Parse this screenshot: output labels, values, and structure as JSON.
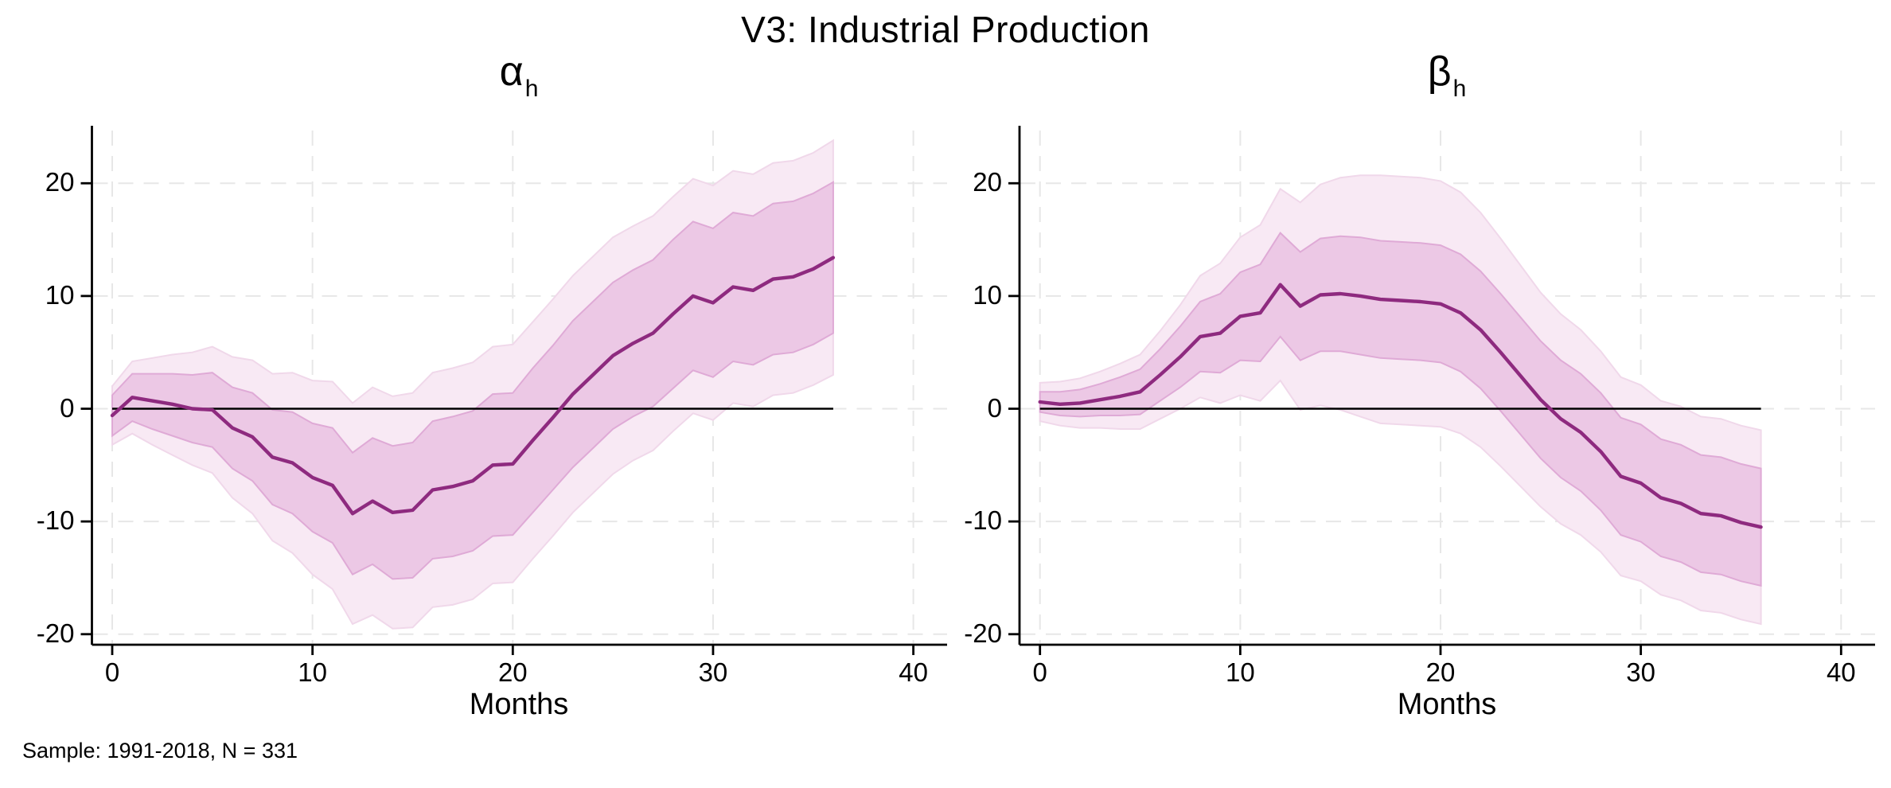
{
  "title": "V3: Industrial Production",
  "note": "Sample: 1991-2018, N = 331",
  "panels": [
    {
      "title_base": "α",
      "title_sub": "h",
      "xlabel": "Months"
    },
    {
      "title_base": "β",
      "title_sub": "h",
      "xlabel": "Months"
    }
  ],
  "colors": {
    "line": "#8e2a7f",
    "inner_fill": "#ecc8e5",
    "inner_edge": "#dfaad6",
    "outer_fill": "#f8e9f4",
    "outer_edge": "#f0d8ea",
    "zero_line": "#000000",
    "axis": "#000000",
    "grid": "#e7e7e7",
    "background": "#ffffff"
  },
  "chart_data": [
    {
      "type": "line",
      "title": "α_h",
      "xlabel": "Months",
      "ylabel": "",
      "x_ticks": [
        0,
        10,
        20,
        30,
        40
      ],
      "y_ticks": [
        20,
        10,
        0,
        -10,
        -20
      ],
      "xlim": [
        -1,
        41.6
      ],
      "ylim": [
        -21,
        25.1
      ],
      "grid": true,
      "legend": "none",
      "months": [
        0,
        1,
        2,
        3,
        4,
        5,
        6,
        7,
        8,
        9,
        10,
        11,
        12,
        13,
        14,
        15,
        16,
        17,
        18,
        19,
        20,
        21,
        22,
        23,
        24,
        25,
        26,
        27,
        28,
        29,
        30,
        31,
        32,
        33,
        34,
        35,
        36
      ],
      "line": [
        -0.6,
        1.0,
        0.7,
        0.4,
        0.0,
        -0.1,
        -1.7,
        -2.5,
        -4.3,
        -4.8,
        -6.1,
        -6.8,
        -9.3,
        -8.2,
        -9.2,
        -9.0,
        -7.2,
        -6.9,
        -6.4,
        -5.0,
        -4.9,
        -2.8,
        -0.8,
        1.3,
        3.0,
        4.7,
        5.8,
        6.7,
        8.4,
        10.0,
        9.4,
        10.8,
        10.5,
        11.5,
        11.7,
        12.4,
        13.4
      ],
      "inner_low": [
        -2.4,
        -1.1,
        -1.8,
        -2.4,
        -3.0,
        -3.4,
        -5.3,
        -6.4,
        -8.5,
        -9.3,
        -10.9,
        -11.9,
        -14.7,
        -13.8,
        -15.1,
        -15.0,
        -13.3,
        -13.1,
        -12.6,
        -11.3,
        -11.2,
        -9.2,
        -7.2,
        -5.2,
        -3.5,
        -1.8,
        -0.7,
        0.2,
        1.8,
        3.4,
        2.8,
        4.2,
        3.9,
        4.8,
        5.0,
        5.7,
        6.7
      ],
      "inner_high": [
        1.2,
        3.1,
        3.1,
        3.1,
        3.0,
        3.2,
        1.9,
        1.4,
        -0.1,
        -0.3,
        -1.3,
        -1.7,
        -3.9,
        -2.6,
        -3.3,
        -3.0,
        -1.1,
        -0.7,
        -0.2,
        1.3,
        1.4,
        3.6,
        5.6,
        7.8,
        9.5,
        11.2,
        12.3,
        13.2,
        15.0,
        16.6,
        16.0,
        17.4,
        17.1,
        18.2,
        18.4,
        19.1,
        20.1
      ],
      "outer_low": [
        -3.2,
        -2.2,
        -3.2,
        -4.1,
        -5.0,
        -5.7,
        -7.9,
        -9.3,
        -11.7,
        -12.8,
        -14.7,
        -16.0,
        -19.1,
        -18.3,
        -19.5,
        -19.4,
        -17.6,
        -17.4,
        -16.9,
        -15.5,
        -15.4,
        -13.3,
        -11.3,
        -9.2,
        -7.5,
        -5.8,
        -4.6,
        -3.7,
        -2.0,
        -0.4,
        -1.0,
        0.5,
        0.2,
        1.2,
        1.4,
        2.1,
        3.0
      ],
      "outer_high": [
        2.0,
        4.2,
        4.5,
        4.8,
        5.0,
        5.5,
        4.6,
        4.3,
        3.1,
        3.2,
        2.5,
        2.4,
        0.5,
        1.9,
        1.1,
        1.4,
        3.2,
        3.6,
        4.1,
        5.5,
        5.7,
        7.7,
        9.7,
        11.8,
        13.5,
        15.2,
        16.2,
        17.1,
        18.8,
        20.4,
        19.8,
        21.1,
        20.8,
        21.8,
        22.0,
        22.7,
        23.8
      ],
      "zero_line_span": [
        0,
        36
      ]
    },
    {
      "type": "line",
      "title": "β_h",
      "xlabel": "Months",
      "ylabel": "",
      "x_ticks": [
        0,
        10,
        20,
        30,
        40
      ],
      "y_ticks": [
        20,
        10,
        0,
        -10,
        -20
      ],
      "xlim": [
        -1,
        41.6
      ],
      "ylim": [
        -21,
        25.1
      ],
      "grid": true,
      "legend": "none",
      "months": [
        0,
        1,
        2,
        3,
        4,
        5,
        6,
        7,
        8,
        9,
        10,
        11,
        12,
        13,
        14,
        15,
        16,
        17,
        18,
        19,
        20,
        21,
        22,
        23,
        24,
        25,
        26,
        27,
        28,
        29,
        30,
        31,
        32,
        33,
        34,
        35,
        36
      ],
      "line": [
        0.6,
        0.4,
        0.5,
        0.8,
        1.1,
        1.5,
        3.0,
        4.6,
        6.4,
        6.7,
        8.2,
        8.5,
        11.0,
        9.1,
        10.1,
        10.2,
        10.0,
        9.7,
        9.6,
        9.5,
        9.3,
        8.5,
        7.0,
        5.0,
        2.9,
        0.8,
        -0.9,
        -2.1,
        -3.8,
        -6.0,
        -6.6,
        -7.9,
        -8.4,
        -9.3,
        -9.5,
        -10.1,
        -10.5
      ],
      "inner_low": [
        -0.3,
        -0.6,
        -0.7,
        -0.6,
        -0.6,
        -0.5,
        0.7,
        1.9,
        3.3,
        3.2,
        4.3,
        4.2,
        6.4,
        4.3,
        5.1,
        5.1,
        4.8,
        4.5,
        4.4,
        4.3,
        4.1,
        3.3,
        1.8,
        -0.2,
        -2.3,
        -4.4,
        -6.1,
        -7.3,
        -9.0,
        -11.2,
        -11.8,
        -13.1,
        -13.6,
        -14.5,
        -14.7,
        -15.3,
        -15.7
      ],
      "inner_high": [
        1.5,
        1.5,
        1.7,
        2.2,
        2.8,
        3.5,
        5.3,
        7.3,
        9.5,
        10.2,
        12.1,
        12.8,
        15.6,
        13.9,
        15.1,
        15.3,
        15.2,
        14.9,
        14.8,
        14.7,
        14.5,
        13.7,
        12.2,
        10.2,
        8.1,
        6.0,
        4.3,
        3.1,
        1.4,
        -0.8,
        -1.4,
        -2.7,
        -3.2,
        -4.1,
        -4.3,
        -4.9,
        -5.3
      ],
      "outer_low": [
        -1.1,
        -1.5,
        -1.7,
        -1.7,
        -1.8,
        -1.8,
        -0.9,
        0.0,
        1.0,
        0.5,
        1.2,
        0.7,
        2.5,
        -0.1,
        0.3,
        -0.1,
        -0.7,
        -1.3,
        -1.4,
        -1.5,
        -1.6,
        -2.2,
        -3.4,
        -5.1,
        -6.9,
        -8.7,
        -10.2,
        -11.2,
        -12.7,
        -14.8,
        -15.3,
        -16.5,
        -17.0,
        -17.9,
        -18.1,
        -18.7,
        -19.1
      ],
      "outer_high": [
        2.3,
        2.4,
        2.7,
        3.3,
        4.0,
        4.8,
        6.9,
        9.2,
        11.8,
        12.9,
        15.2,
        16.3,
        19.5,
        18.3,
        19.9,
        20.5,
        20.7,
        20.7,
        20.6,
        20.5,
        20.2,
        19.2,
        17.4,
        15.1,
        12.7,
        10.3,
        8.4,
        7.0,
        5.1,
        2.8,
        2.1,
        0.7,
        0.2,
        -0.7,
        -0.9,
        -1.5,
        -1.9
      ],
      "zero_line_span": [
        0,
        36
      ]
    }
  ]
}
